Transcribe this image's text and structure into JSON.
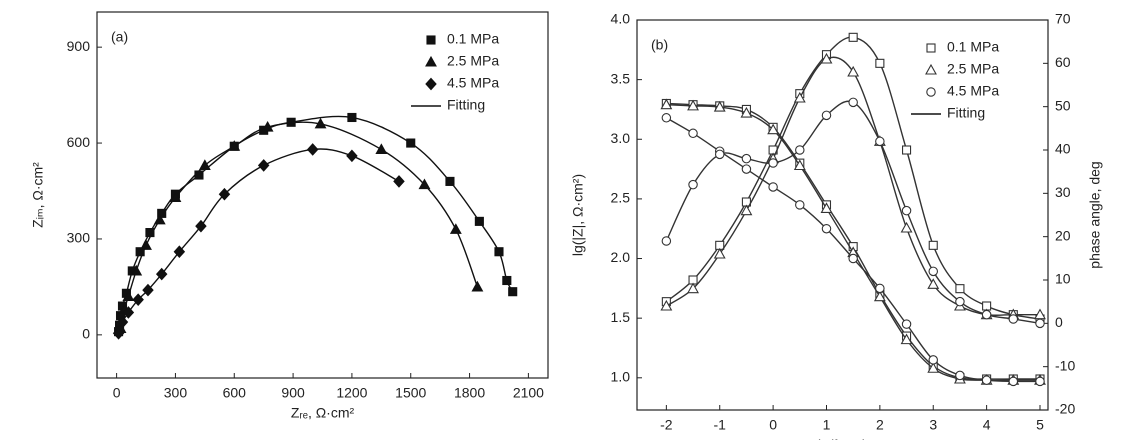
{
  "chart_data": [
    {
      "type": "scatter",
      "panel": "(a)",
      "xlabel": "Zᵣₑ, Ω·cm²",
      "ylabel": "Zᵢₘ, Ω·cm²",
      "xlim": [
        -100,
        2200
      ],
      "ylim": [
        -135,
        1010
      ],
      "xticks": [
        0,
        300,
        600,
        900,
        1200,
        1500,
        1800,
        2100
      ],
      "yticks": [
        0,
        300,
        600,
        900
      ],
      "legend": "upper right",
      "fit_label": "Fitting",
      "filled": true,
      "series": [
        {
          "name": "0.1 MPa",
          "marker": "square",
          "color": "#111",
          "x": [
            10,
            15,
            20,
            30,
            50,
            80,
            120,
            170,
            230,
            300,
            420,
            600,
            750,
            890,
            1200,
            1500,
            1700,
            1850,
            1950,
            1990,
            2020
          ],
          "values": [
            10,
            30,
            60,
            90,
            130,
            200,
            260,
            320,
            380,
            440,
            500,
            590,
            640,
            665,
            680,
            600,
            480,
            355,
            260,
            170,
            135
          ]
        },
        {
          "name": "2.5 MPa",
          "marker": "triangle",
          "color": "#111",
          "x": [
            20,
            40,
            60,
            100,
            150,
            220,
            300,
            450,
            600,
            770,
            1040,
            1350,
            1570,
            1730,
            1840
          ],
          "values": [
            20,
            80,
            120,
            200,
            280,
            360,
            430,
            530,
            590,
            650,
            660,
            580,
            470,
            330,
            150
          ]
        },
        {
          "name": "4.5 MPa",
          "marker": "diamond",
          "color": "#111",
          "x": [
            10,
            30,
            60,
            110,
            160,
            230,
            320,
            430,
            550,
            750,
            1000,
            1200,
            1440
          ],
          "values": [
            5,
            40,
            70,
            110,
            140,
            190,
            260,
            340,
            440,
            530,
            580,
            560,
            480
          ]
        }
      ]
    },
    {
      "type": "line",
      "panel": "(b)",
      "xlabel": "lg(f, Hz)",
      "ylabel": "lg(|Z|, Ω·cm²)",
      "y2label": "phase angle, deg",
      "xlim": [
        -2.55,
        5.15
      ],
      "ylim": [
        0.73,
        4.0
      ],
      "y2lim": [
        -20,
        70
      ],
      "xticks": [
        -2,
        -1,
        0,
        1,
        2,
        3,
        4,
        5
      ],
      "yticks": [
        {
          "value": 1,
          "label": "1.0"
        },
        1.5,
        {
          "value": 2,
          "label": "2.0"
        },
        2.5,
        {
          "value": 3,
          "label": "3.0"
        },
        3.5,
        {
          "value": 4,
          "label": "4.0"
        }
      ],
      "y2ticks": [
        -20,
        -10,
        0,
        10,
        20,
        30,
        40,
        50,
        60,
        70
      ],
      "legend": "upper right",
      "fit_label": "Fitting",
      "filled": false,
      "x": [
        -2,
        -1.5,
        -1,
        -0.5,
        0,
        0.5,
        1,
        1.5,
        2,
        2.5,
        3,
        3.5,
        4,
        4.5,
        5
      ],
      "series": [
        {
          "name": "0.1 MPa",
          "marker": "square",
          "color": "#333",
          "values": [
            3.3,
            3.29,
            3.28,
            3.25,
            3.1,
            2.8,
            2.45,
            2.1,
            1.7,
            1.35,
            1.1,
            1.0,
            0.99,
            0.99,
            0.99
          ]
        },
        {
          "name": "2.5 MPa",
          "marker": "triangle",
          "color": "#333",
          "values": [
            3.29,
            3.28,
            3.27,
            3.22,
            3.08,
            2.78,
            2.42,
            2.05,
            1.68,
            1.32,
            1.08,
            0.99,
            0.98,
            0.98,
            0.98
          ]
        },
        {
          "name": "4.5 MPa",
          "marker": "circle",
          "color": "#333",
          "values": [
            3.18,
            3.05,
            2.9,
            2.75,
            2.6,
            2.45,
            2.25,
            2.0,
            1.75,
            1.45,
            1.15,
            1.02,
            0.98,
            0.97,
            0.97
          ]
        },
        {
          "marker": "square",
          "color": "#333",
          "axis": "y2",
          "values": [
            5,
            10,
            18,
            28,
            40,
            53,
            62,
            66,
            60,
            40,
            18,
            8,
            4,
            2,
            1
          ]
        },
        {
          "marker": "triangle",
          "color": "#333",
          "axis": "y2",
          "values": [
            4,
            8,
            16,
            26,
            38,
            52,
            61,
            58,
            42,
            22,
            9,
            4,
            2,
            2,
            2
          ]
        },
        {
          "marker": "circle",
          "color": "#333",
          "axis": "y2",
          "values": [
            19,
            32,
            39,
            38,
            37,
            40,
            48,
            51,
            42,
            26,
            12,
            5,
            2,
            1,
            0
          ]
        }
      ]
    }
  ]
}
